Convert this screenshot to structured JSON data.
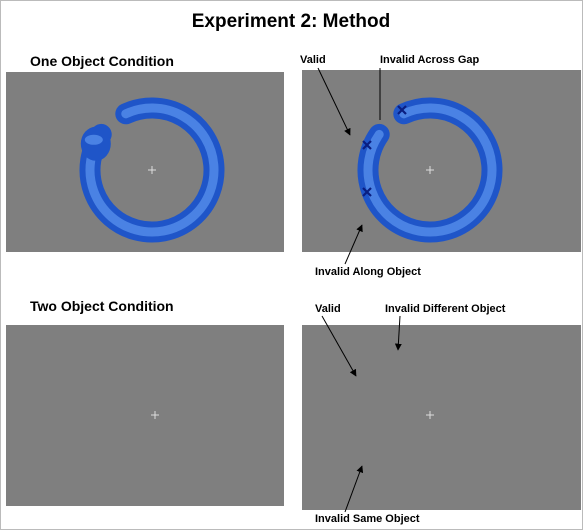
{
  "header": {
    "title": "Experiment 2: Method"
  },
  "rows": [
    {
      "heading": "One Object Condition",
      "labels": {
        "valid": "Valid",
        "invalid_top": "Invalid Across Gap",
        "invalid_bottom": "Invalid Along Object"
      }
    },
    {
      "heading": "Two Object Condition",
      "labels": {
        "valid": "Valid",
        "invalid_top": "Invalid Different Object",
        "invalid_bottom": "Invalid Same Object"
      }
    }
  ]
}
